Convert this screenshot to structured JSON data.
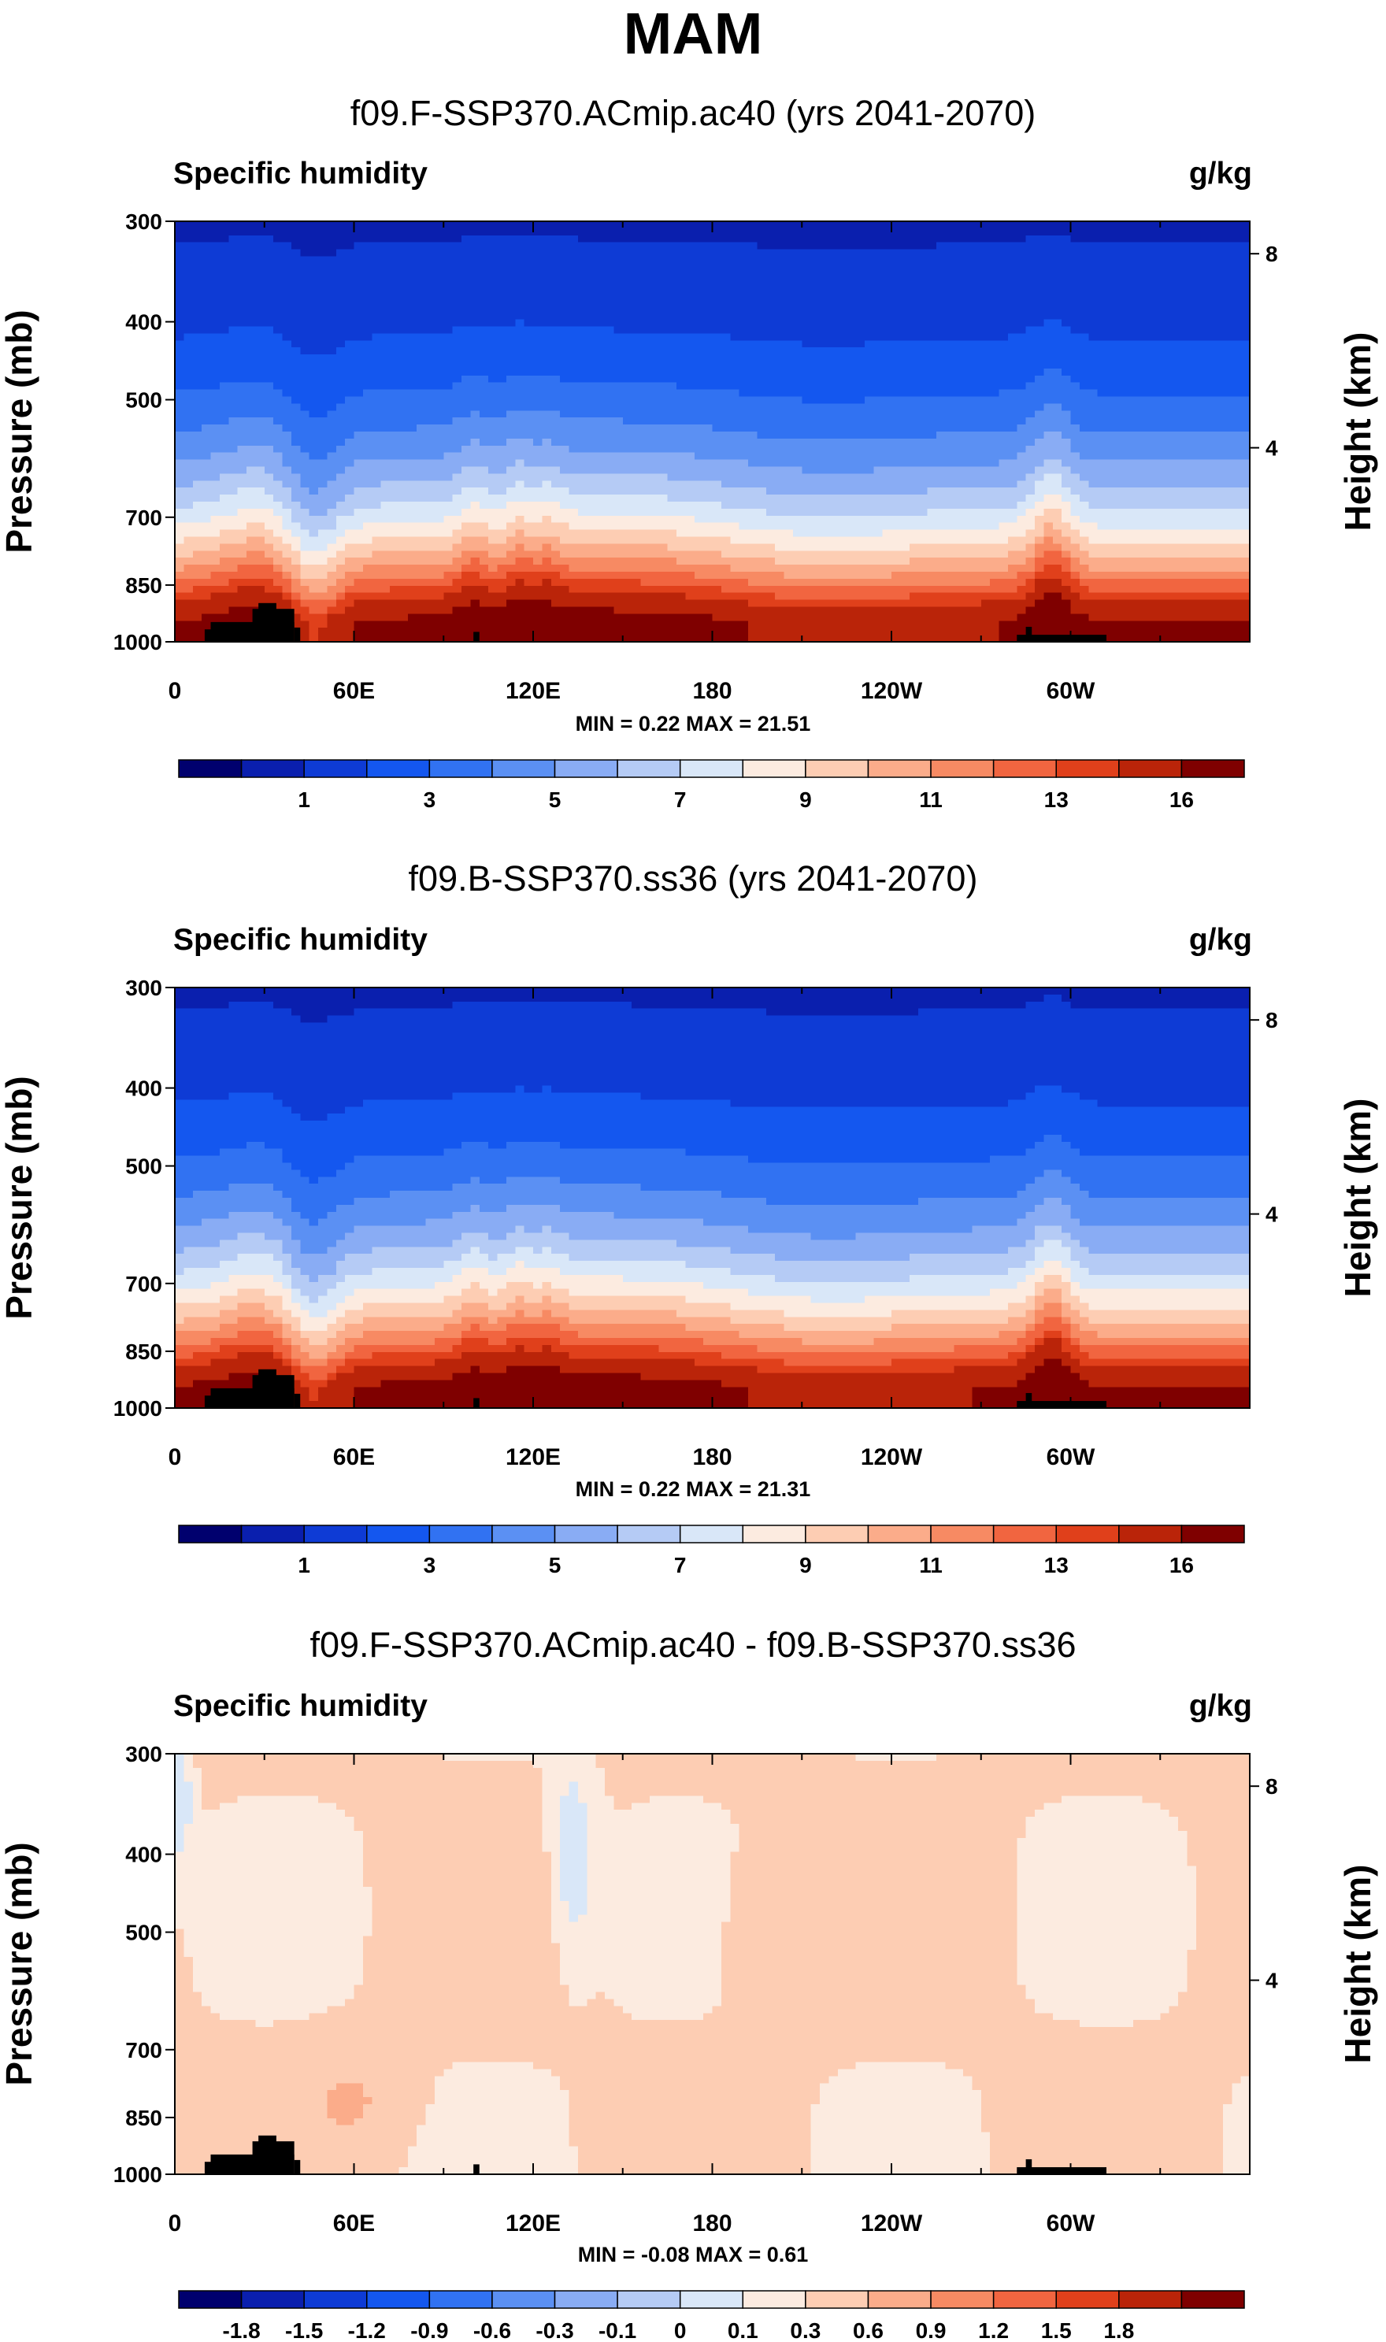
{
  "title": "MAM",
  "colors": {
    "main": [
      "#00006e",
      "#0a1fae",
      "#0e3bd5",
      "#1457ef",
      "#3172f2",
      "#5b90f3",
      "#89acf4",
      "#b5cbf5",
      "#d9e7f8",
      "#fcebe0",
      "#fdcdb3",
      "#fbac8a",
      "#f78a63",
      "#f16540",
      "#e0401b",
      "#ba2409",
      "#7f0000"
    ],
    "diff": [
      "#00006e",
      "#0a1fae",
      "#0e3bd5",
      "#1457ef",
      "#3172f2",
      "#5b90f3",
      "#89acf4",
      "#b5cbf5",
      "#d9e7f8",
      "#fcebe0",
      "#fdcdb3",
      "#fbac8a",
      "#f78a63",
      "#f16540",
      "#e0401b",
      "#ba2409",
      "#7f0000"
    ]
  },
  "chart_data": [
    {
      "type": "heatmap",
      "title": "f09.F-SSP370.ACmip.ac40 (yrs 2041-2070)",
      "left_label": "Specific humidity",
      "right_label": "g/kg",
      "ylabel": "Pressure (mb)",
      "y2label": "Height (km)",
      "yticks": [
        "300",
        "400",
        "500",
        "700",
        "850",
        "1000"
      ],
      "ytick_values": [
        300,
        400,
        500,
        700,
        850,
        1000
      ],
      "y2ticks": [
        "8",
        "4"
      ],
      "y2tick_values": [
        8,
        4
      ],
      "xticks": [
        "0",
        "60E",
        "120E",
        "180",
        "120W",
        "60W"
      ],
      "xtick_values": [
        0,
        60,
        120,
        180,
        240,
        300
      ],
      "xlim": [
        0,
        360
      ],
      "ylim": [
        1000,
        300
      ],
      "minmax": "MIN =   0.22  MAX =  21.51",
      "colorbar_labels": [
        "1",
        "3",
        "5",
        "7",
        "9",
        "11",
        "13",
        "16"
      ],
      "levels": [
        0.5,
        1,
        2,
        3,
        4,
        5,
        6,
        7,
        8,
        9,
        10,
        11,
        12,
        13,
        14,
        16
      ],
      "variant": "main"
    },
    {
      "type": "heatmap",
      "title": "f09.B-SSP370.ss36 (yrs 2041-2070)",
      "left_label": "Specific humidity",
      "right_label": "g/kg",
      "ylabel": "Pressure (mb)",
      "y2label": "Height (km)",
      "yticks": [
        "300",
        "400",
        "500",
        "700",
        "850",
        "1000"
      ],
      "ytick_values": [
        300,
        400,
        500,
        700,
        850,
        1000
      ],
      "y2ticks": [
        "8",
        "4"
      ],
      "y2tick_values": [
        8,
        4
      ],
      "xticks": [
        "0",
        "60E",
        "120E",
        "180",
        "120W",
        "60W"
      ],
      "xtick_values": [
        0,
        60,
        120,
        180,
        240,
        300
      ],
      "xlim": [
        0,
        360
      ],
      "ylim": [
        1000,
        300
      ],
      "minmax": "MIN =   0.22  MAX =  21.31",
      "colorbar_labels": [
        "1",
        "3",
        "5",
        "7",
        "9",
        "11",
        "13",
        "16"
      ],
      "levels": [
        0.5,
        1,
        2,
        3,
        4,
        5,
        6,
        7,
        8,
        9,
        10,
        11,
        12,
        13,
        14,
        16
      ],
      "variant": "main"
    },
    {
      "type": "heatmap",
      "title": "f09.F-SSP370.ACmip.ac40 - f09.B-SSP370.ss36",
      "left_label": "Specific humidity",
      "right_label": "g/kg",
      "ylabel": "Pressure (mb)",
      "y2label": "Height (km)",
      "yticks": [
        "300",
        "400",
        "500",
        "700",
        "850",
        "1000"
      ],
      "ytick_values": [
        300,
        400,
        500,
        700,
        850,
        1000
      ],
      "y2ticks": [
        "8",
        "4"
      ],
      "y2tick_values": [
        8,
        4
      ],
      "xticks": [
        "0",
        "60E",
        "120E",
        "180",
        "120W",
        "60W"
      ],
      "xtick_values": [
        0,
        60,
        120,
        180,
        240,
        300
      ],
      "xlim": [
        0,
        360
      ],
      "ylim": [
        1000,
        300
      ],
      "minmax": "MIN = -0.08  MAX =   0.61",
      "colorbar_labels": [
        "-1.8",
        "-1.5",
        "-1.2",
        "-0.9",
        "-0.6",
        "-0.3",
        "-0.1",
        "0",
        "0.1",
        "0.3",
        "0.6",
        "0.9",
        "1.2",
        "1.5",
        "1.8"
      ],
      "levels": [
        -2.1,
        -1.8,
        -1.5,
        -1.2,
        -0.9,
        -0.6,
        -0.3,
        -0.1,
        0,
        0.1,
        0.3,
        0.6,
        0.9,
        1.2,
        1.5,
        1.8
      ],
      "variant": "diff"
    }
  ]
}
